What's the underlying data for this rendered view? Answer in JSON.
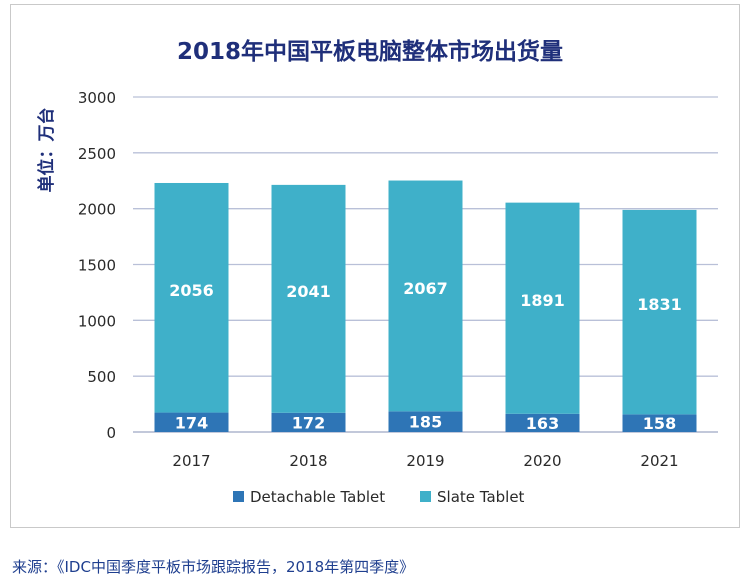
{
  "chart_data": {
    "type": "bar",
    "stacked": true,
    "title": "2018年中国平板电脑整体市场出货量",
    "ylabel": "单位：万台",
    "xlabel": "",
    "categories": [
      "2017",
      "2018",
      "2019",
      "2020",
      "2021"
    ],
    "series": [
      {
        "name": "Detachable Tablet",
        "values": [
          174,
          172,
          185,
          163,
          158
        ],
        "color": "#2e75b6"
      },
      {
        "name": "Slate Tablet",
        "values": [
          2056,
          2041,
          2067,
          1891,
          1831
        ],
        "color": "#3fb0c9"
      }
    ],
    "ylim": [
      0,
      3000
    ],
    "yticks": [
      0,
      500,
      1000,
      1500,
      2000,
      2500,
      3000
    ],
    "grid": true,
    "legend": "bottom",
    "title_color": "#1f2f7a"
  },
  "footer": {
    "source": "来源：《IDC中国季度平板市场跟踪报告，2018年第四季度》"
  }
}
